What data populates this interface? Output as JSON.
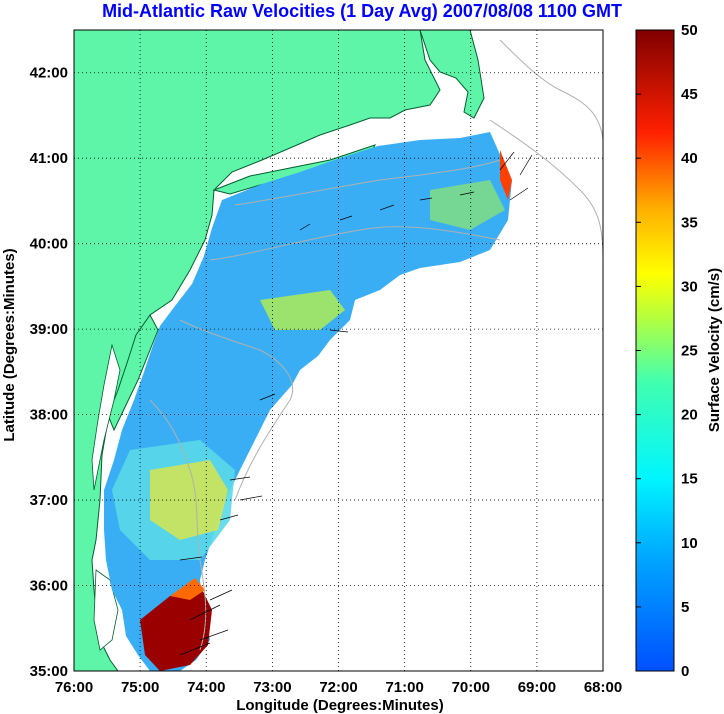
{
  "chart_data": {
    "type": "heatmap",
    "title": "Mid-Atlantic Raw Velocities (1 Day Avg) 2007/08/08 1100 GMT",
    "xlabel": "Longitude (Degrees:Minutes)",
    "ylabel": "Latitude (Degrees:Minutes)",
    "colorbar_label": "Surface Velocity (cm/s)",
    "x_ticks": [
      "76:00",
      "75:00",
      "74:00",
      "73:00",
      "72:00",
      "71:00",
      "70:00",
      "69:00",
      "68:00"
    ],
    "y_ticks": [
      "35:00",
      "36:00",
      "37:00",
      "38:00",
      "39:00",
      "40:00",
      "41:00",
      "42:00"
    ],
    "colorbar_ticks": [
      "0",
      "5",
      "10",
      "15",
      "20",
      "25",
      "30",
      "35",
      "40",
      "45",
      "50"
    ],
    "xlim": [
      -76,
      -68
    ],
    "ylim": [
      35,
      42.5
    ],
    "clim": [
      0,
      50
    ],
    "grid": true,
    "colormap": "jet",
    "colors": {
      "land": "#5ff5a8",
      "title": "#0000ff",
      "coast": "#006030",
      "bathymetry": "#b0b0b0",
      "grid": "#000000"
    }
  }
}
